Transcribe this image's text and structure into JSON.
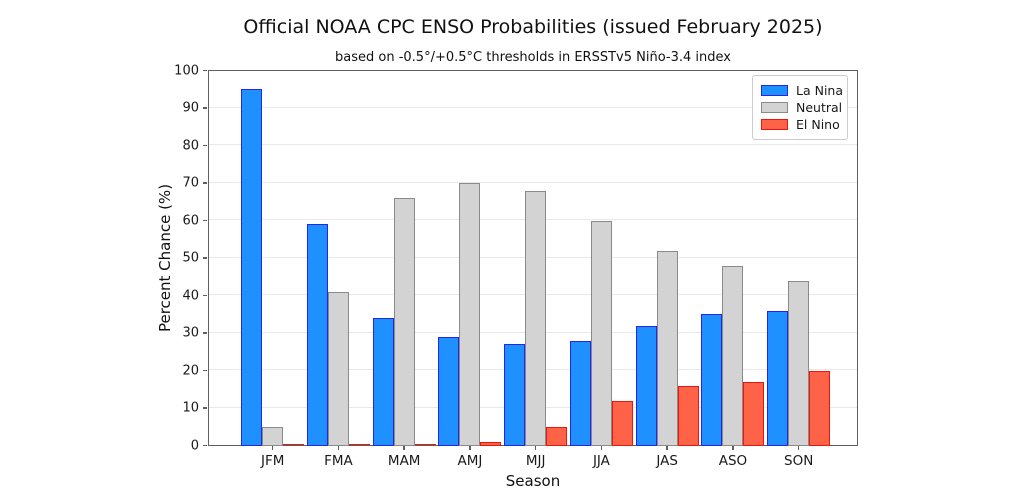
{
  "chart_data": {
    "type": "bar",
    "title": "Official NOAA CPC ENSO Probabilities (issued February 2025)",
    "subtitle": "based on -0.5°/+0.5°C thresholds in ERSSTv5 Niño-3.4 index",
    "xlabel": "Season",
    "ylabel": "Percent Chance (%)",
    "ylim": [
      0,
      100
    ],
    "yticks": [
      0,
      10,
      20,
      30,
      40,
      50,
      60,
      70,
      80,
      90,
      100
    ],
    "grid": true,
    "legend_position": "upper right",
    "categories": [
      "JFM",
      "FMA",
      "MAM",
      "AMJ",
      "MJJ",
      "JJA",
      "JAS",
      "ASO",
      "SON"
    ],
    "series": [
      {
        "name": "La Nina",
        "fill_color": "#1E90FF",
        "edge_color": "#2424EE",
        "values": [
          95,
          59,
          34,
          29,
          27,
          28,
          32,
          35,
          36
        ]
      },
      {
        "name": "Neutral",
        "fill_color": "#D3D3D3",
        "edge_color": "#8A8A8A",
        "values": [
          5,
          41,
          66,
          70,
          68,
          60,
          52,
          48,
          44
        ]
      },
      {
        "name": "El Nino",
        "fill_color": "#FF6347",
        "edge_color": "#E81810",
        "values": [
          0,
          0,
          0,
          1,
          5,
          12,
          16,
          17,
          20
        ]
      }
    ],
    "colors": {
      "gridline": "#e9e9e9",
      "axis": "#5f5f5f",
      "text": "#111111"
    }
  }
}
